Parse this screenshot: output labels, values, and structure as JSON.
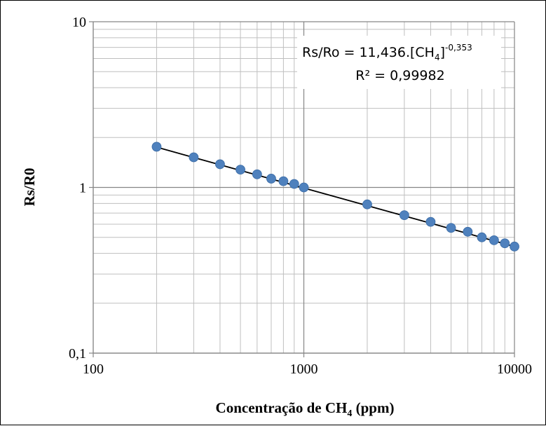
{
  "chart_data": {
    "type": "scatter",
    "title": "",
    "xlabel": "Concentração de CH",
    "xlabel_sub": "4",
    "xlabel_tail": " (ppm)",
    "ylabel": "Rs/R0",
    "x_scale": "log",
    "y_scale": "log",
    "xlim": [
      100,
      10000
    ],
    "ylim": [
      0.1,
      10
    ],
    "x_tick_labels": [
      "100",
      "1000",
      "10000"
    ],
    "y_tick_labels": [
      "0,1",
      "1",
      "10"
    ],
    "grid": true,
    "legend": "none",
    "marker_color": "#4f81bd",
    "trendline_color": "#000000",
    "series": [
      {
        "x": [
          200,
          300,
          400,
          500,
          600,
          700,
          800,
          900,
          1000,
          2000,
          3000,
          4000,
          5000,
          6000,
          7000,
          8000,
          9000,
          10000
        ],
        "y": [
          1.76,
          1.52,
          1.38,
          1.28,
          1.2,
          1.13,
          1.09,
          1.05,
          1.0,
          0.79,
          0.68,
          0.62,
          0.57,
          0.54,
          0.5,
          0.48,
          0.46,
          0.44
        ]
      }
    ],
    "trendline": {
      "type": "power",
      "x": [
        200,
        10000
      ],
      "y": [
        1.75,
        0.44
      ],
      "equation_lhs": "Rs/Ro = 11,436.[CH",
      "equation_sub": "4",
      "equation_rhs": "]",
      "equation_exp": "-0,353",
      "r2": "R² = 0,99982"
    }
  }
}
